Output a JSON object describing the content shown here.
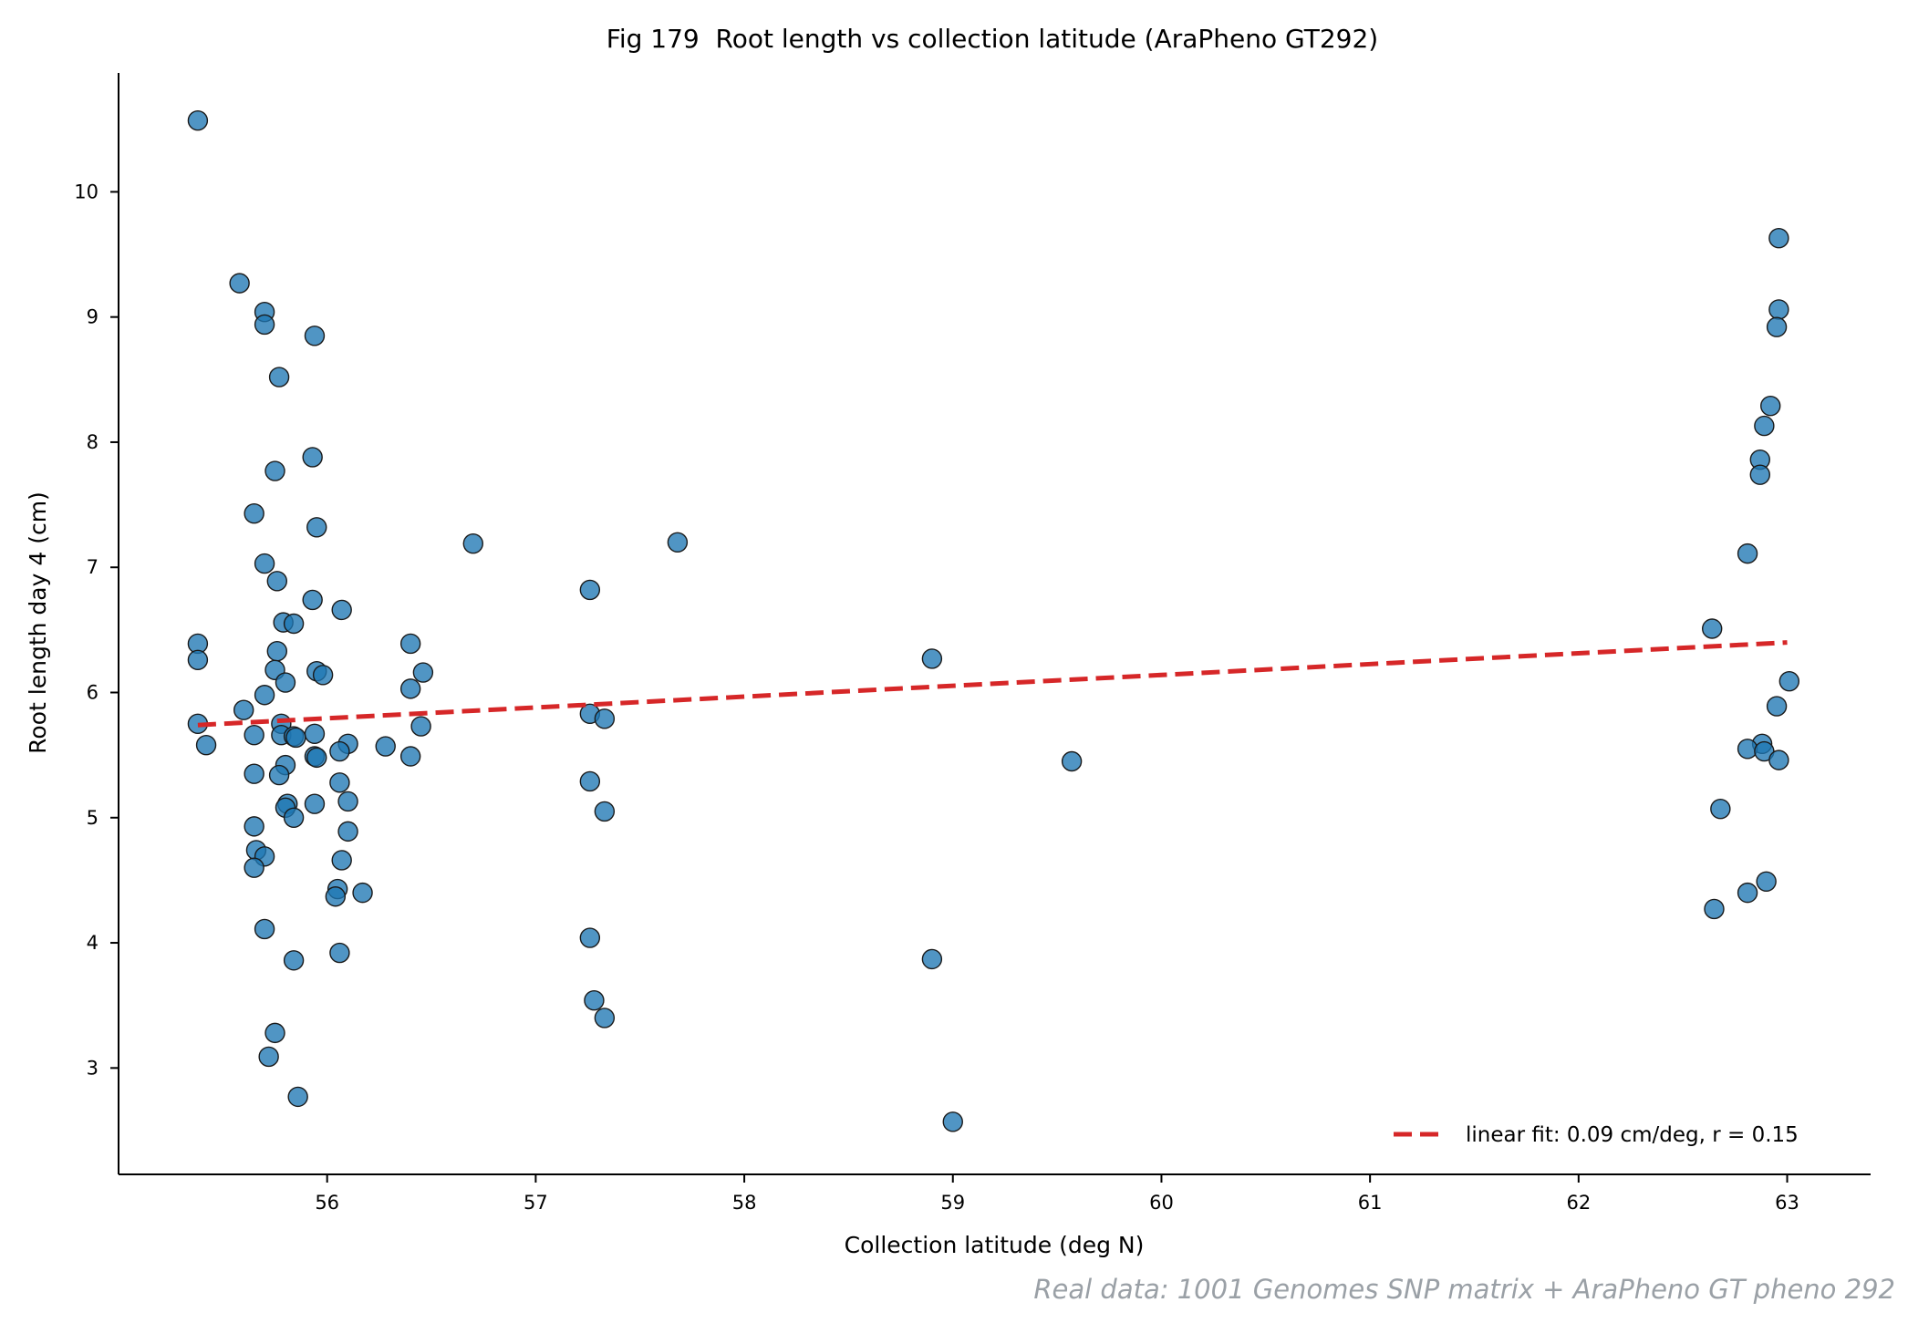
{
  "chart_data": {
    "type": "scatter",
    "title": "Fig 179  Root length vs collection latitude (AraPheno GT292)",
    "xlabel": "Collection latitude (deg N)",
    "ylabel": "Root length day 4 (cm)",
    "xlim": [
      55.0,
      63.4
    ],
    "ylim": [
      2.15,
      10.95
    ],
    "xticks": [
      56,
      57,
      58,
      59,
      60,
      61,
      62,
      63
    ],
    "yticks": [
      3,
      4,
      5,
      6,
      7,
      8,
      9,
      10
    ],
    "grid": false,
    "legend_position": "lower-right",
    "point_color": "#1f77b4",
    "fit_color": "#d62728",
    "source_note": "Real data: 1001 Genomes SNP matrix + AraPheno GT pheno 292",
    "fit": {
      "label": "linear fit: 0.09 cm/deg, r = 0.15",
      "slope": 0.09,
      "r": 0.15,
      "x": [
        55.38,
        63.0
      ],
      "y": [
        5.74,
        6.4
      ]
    },
    "points": [
      {
        "x": 55.38,
        "y": 10.57
      },
      {
        "x": 55.58,
        "y": 9.27
      },
      {
        "x": 55.7,
        "y": 9.04
      },
      {
        "x": 55.7,
        "y": 8.94
      },
      {
        "x": 55.94,
        "y": 8.85
      },
      {
        "x": 55.77,
        "y": 8.52
      },
      {
        "x": 55.93,
        "y": 7.88
      },
      {
        "x": 55.75,
        "y": 7.77
      },
      {
        "x": 55.65,
        "y": 7.43
      },
      {
        "x": 55.95,
        "y": 7.32
      },
      {
        "x": 55.7,
        "y": 7.03
      },
      {
        "x": 55.76,
        "y": 6.89
      },
      {
        "x": 55.93,
        "y": 6.74
      },
      {
        "x": 56.07,
        "y": 6.66
      },
      {
        "x": 55.79,
        "y": 6.56
      },
      {
        "x": 55.84,
        "y": 6.55
      },
      {
        "x": 55.38,
        "y": 6.39
      },
      {
        "x": 55.76,
        "y": 6.33
      },
      {
        "x": 55.38,
        "y": 6.26
      },
      {
        "x": 55.75,
        "y": 6.18
      },
      {
        "x": 55.95,
        "y": 6.17
      },
      {
        "x": 55.98,
        "y": 6.14
      },
      {
        "x": 55.8,
        "y": 6.08
      },
      {
        "x": 55.7,
        "y": 5.98
      },
      {
        "x": 55.6,
        "y": 5.86
      },
      {
        "x": 55.38,
        "y": 5.75
      },
      {
        "x": 55.78,
        "y": 5.75
      },
      {
        "x": 55.94,
        "y": 5.67
      },
      {
        "x": 55.65,
        "y": 5.66
      },
      {
        "x": 55.78,
        "y": 5.66
      },
      {
        "x": 55.84,
        "y": 5.65
      },
      {
        "x": 55.85,
        "y": 5.64
      },
      {
        "x": 55.42,
        "y": 5.58
      },
      {
        "x": 56.1,
        "y": 5.59
      },
      {
        "x": 56.06,
        "y": 5.53
      },
      {
        "x": 55.94,
        "y": 5.49
      },
      {
        "x": 55.95,
        "y": 5.48
      },
      {
        "x": 55.8,
        "y": 5.42
      },
      {
        "x": 55.65,
        "y": 5.35
      },
      {
        "x": 55.77,
        "y": 5.34
      },
      {
        "x": 56.06,
        "y": 5.28
      },
      {
        "x": 56.1,
        "y": 5.13
      },
      {
        "x": 55.94,
        "y": 5.11
      },
      {
        "x": 55.81,
        "y": 5.11
      },
      {
        "x": 55.8,
        "y": 5.08
      },
      {
        "x": 55.84,
        "y": 5.0
      },
      {
        "x": 55.65,
        "y": 4.93
      },
      {
        "x": 56.1,
        "y": 4.89
      },
      {
        "x": 55.66,
        "y": 4.74
      },
      {
        "x": 55.7,
        "y": 4.69
      },
      {
        "x": 56.07,
        "y": 4.66
      },
      {
        "x": 55.65,
        "y": 4.6
      },
      {
        "x": 56.05,
        "y": 4.43
      },
      {
        "x": 56.17,
        "y": 4.4
      },
      {
        "x": 56.04,
        "y": 4.37
      },
      {
        "x": 55.7,
        "y": 4.11
      },
      {
        "x": 56.06,
        "y": 3.92
      },
      {
        "x": 55.84,
        "y": 3.86
      },
      {
        "x": 55.75,
        "y": 3.28
      },
      {
        "x": 55.72,
        "y": 3.09
      },
      {
        "x": 55.86,
        "y": 2.77
      },
      {
        "x": 56.4,
        "y": 6.39
      },
      {
        "x": 56.46,
        "y": 6.16
      },
      {
        "x": 56.4,
        "y": 6.03
      },
      {
        "x": 56.45,
        "y": 5.73
      },
      {
        "x": 56.28,
        "y": 5.57
      },
      {
        "x": 56.4,
        "y": 5.49
      },
      {
        "x": 56.7,
        "y": 7.19
      },
      {
        "x": 57.68,
        "y": 7.2
      },
      {
        "x": 57.26,
        "y": 6.82
      },
      {
        "x": 57.26,
        "y": 5.83
      },
      {
        "x": 57.33,
        "y": 5.79
      },
      {
        "x": 57.26,
        "y": 5.29
      },
      {
        "x": 57.33,
        "y": 5.05
      },
      {
        "x": 57.26,
        "y": 4.04
      },
      {
        "x": 57.28,
        "y": 3.54
      },
      {
        "x": 57.33,
        "y": 3.4
      },
      {
        "x": 58.9,
        "y": 6.27
      },
      {
        "x": 58.9,
        "y": 3.87
      },
      {
        "x": 59.0,
        "y": 2.57
      },
      {
        "x": 59.57,
        "y": 5.45
      },
      {
        "x": 62.96,
        "y": 9.63
      },
      {
        "x": 62.96,
        "y": 9.06
      },
      {
        "x": 62.95,
        "y": 8.92
      },
      {
        "x": 62.92,
        "y": 8.29
      },
      {
        "x": 62.89,
        "y": 8.13
      },
      {
        "x": 62.87,
        "y": 7.86
      },
      {
        "x": 62.87,
        "y": 7.74
      },
      {
        "x": 62.81,
        "y": 7.11
      },
      {
        "x": 62.64,
        "y": 6.51
      },
      {
        "x": 63.01,
        "y": 6.09
      },
      {
        "x": 62.95,
        "y": 5.89
      },
      {
        "x": 62.88,
        "y": 5.59
      },
      {
        "x": 62.81,
        "y": 5.55
      },
      {
        "x": 62.89,
        "y": 5.53
      },
      {
        "x": 62.96,
        "y": 5.46
      },
      {
        "x": 62.68,
        "y": 5.07
      },
      {
        "x": 62.9,
        "y": 4.49
      },
      {
        "x": 62.81,
        "y": 4.4
      },
      {
        "x": 62.65,
        "y": 4.27
      }
    ]
  }
}
